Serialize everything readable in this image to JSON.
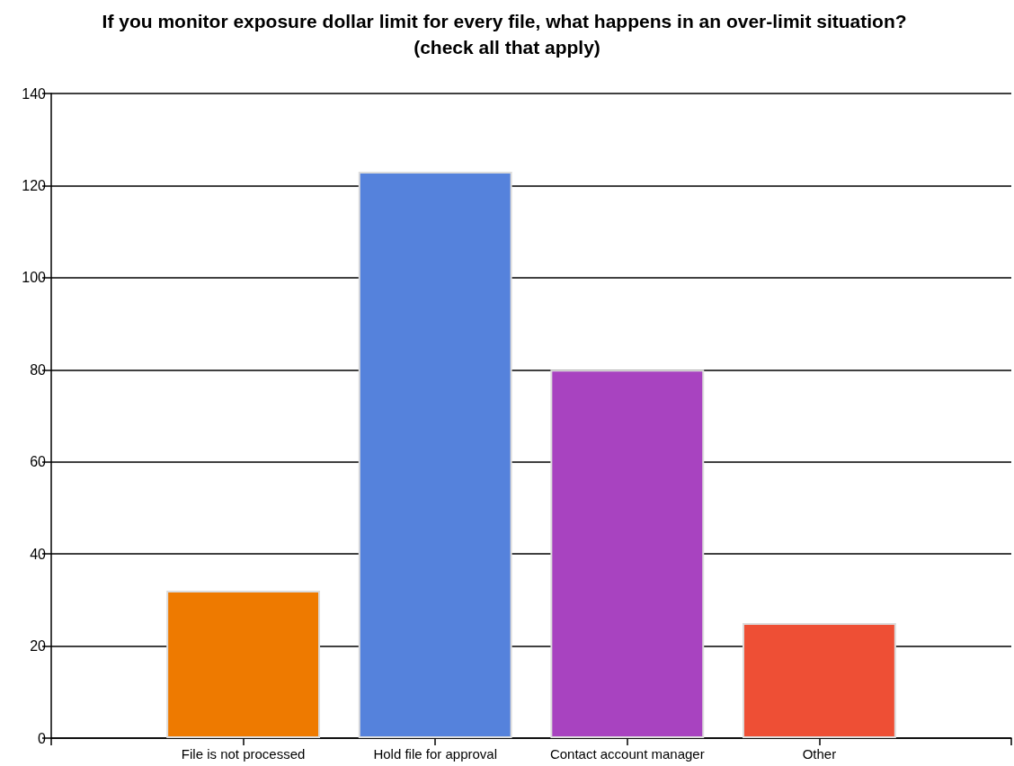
{
  "chart_data": {
    "type": "bar",
    "title": "If you monitor exposure dollar limit for every file, what happens in an over-limit situation? (check all that apply)",
    "categories": [
      "File is not processed",
      "Hold file for approval",
      "Contact account manager",
      "Other"
    ],
    "values": [
      32,
      123,
      80,
      25
    ],
    "colors": [
      "#ee7a00",
      "#5582dc",
      "#a843c0",
      "#ee4f35"
    ],
    "ylim": [
      0,
      140
    ],
    "yticks": [
      0,
      20,
      40,
      60,
      80,
      100,
      120,
      140
    ],
    "grid": true
  }
}
